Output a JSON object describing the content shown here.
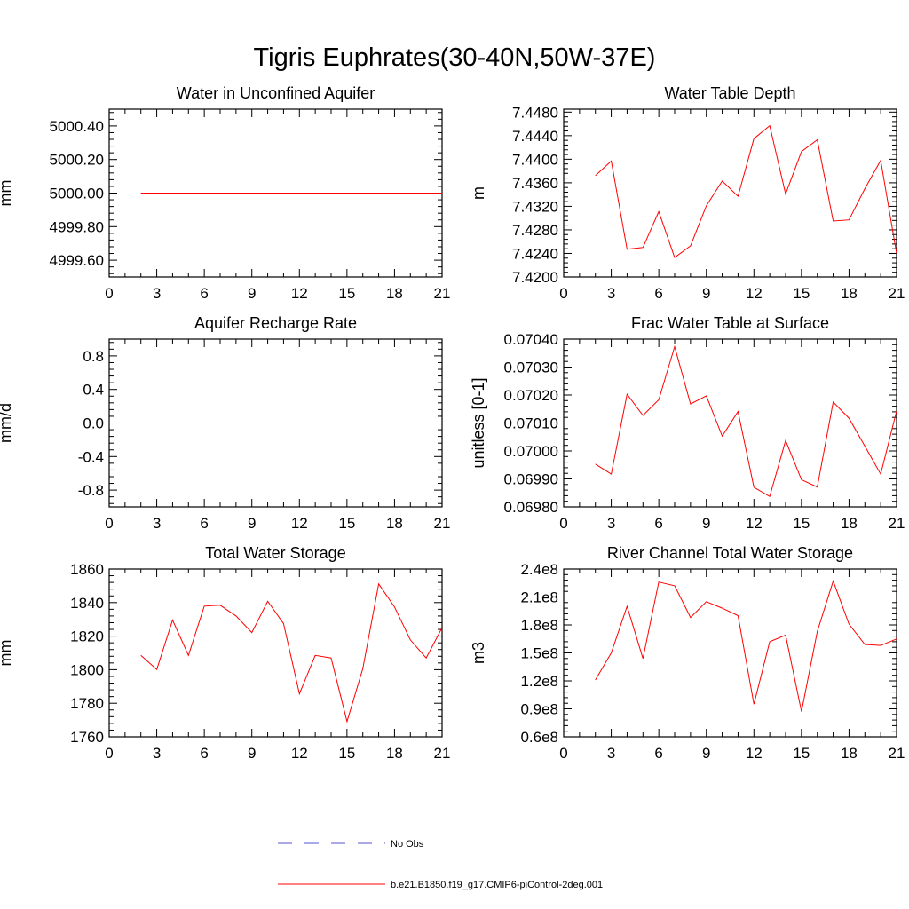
{
  "figure": {
    "title": "Tigris Euphrates(30-40N,50W-37E)"
  },
  "legend": {
    "items": [
      {
        "label": "No Obs",
        "color": "#5555cc",
        "style": "dashed"
      },
      {
        "label": "b.e21.B1850.f19_g17.CMIP6-piControl-2deg.001",
        "color": "#ff0000",
        "style": "solid"
      }
    ]
  },
  "colors": {
    "series": "#ff0000",
    "obs": "#5555cc",
    "axes": "#000000"
  },
  "chart_data": [
    {
      "type": "line",
      "title": "Water in Unconfined Aquifer",
      "ylabel": "mm",
      "xlim": [
        0,
        21
      ],
      "ylim": [
        4999.5,
        5000.5
      ],
      "xticks": [
        0,
        3,
        6,
        9,
        12,
        15,
        18,
        21
      ],
      "yticks": [
        4999.6,
        4999.8,
        5000.0,
        5000.2,
        5000.4
      ],
      "yticklabels": [
        "4999.60",
        "4999.80",
        "5000.00",
        "5000.20",
        "5000.40"
      ],
      "x": [
        2,
        3,
        4,
        5,
        6,
        7,
        8,
        9,
        10,
        11,
        12,
        13,
        14,
        15,
        16,
        17,
        18,
        19,
        20,
        21
      ],
      "series": [
        {
          "values": [
            5000,
            5000,
            5000,
            5000,
            5000,
            5000,
            5000,
            5000,
            5000,
            5000,
            5000,
            5000,
            5000,
            5000,
            5000,
            5000,
            5000,
            5000,
            5000,
            5000
          ]
        }
      ]
    },
    {
      "type": "line",
      "title": "Water Table Depth",
      "ylabel": "m",
      "xlim": [
        0,
        21
      ],
      "ylim": [
        7.42,
        7.4485
      ],
      "xticks": [
        0,
        3,
        6,
        9,
        12,
        15,
        18,
        21
      ],
      "yticks": [
        7.42,
        7.424,
        7.428,
        7.432,
        7.436,
        7.44,
        7.444,
        7.448
      ],
      "yticklabels": [
        "7.4200",
        "7.4240",
        "7.4280",
        "7.4320",
        "7.4360",
        "7.4400",
        "7.4440",
        "7.4480"
      ],
      "x": [
        2,
        3,
        4,
        5,
        6,
        7,
        8,
        9,
        10,
        11,
        12,
        13,
        14,
        15,
        16,
        17,
        18,
        19,
        20,
        21
      ],
      "series": [
        {
          "values": [
            7.4372,
            7.4397,
            7.4247,
            7.425,
            7.4311,
            7.4233,
            7.4253,
            7.4321,
            7.4363,
            7.4337,
            7.4435,
            7.4457,
            7.4341,
            7.4413,
            7.4433,
            7.4295,
            7.4297,
            7.435,
            7.4398,
            7.424
          ]
        }
      ]
    },
    {
      "type": "line",
      "title": "Aquifer Recharge Rate",
      "ylabel": "mm/d",
      "xlim": [
        0,
        21
      ],
      "ylim": [
        -1.0,
        1.0
      ],
      "xticks": [
        0,
        3,
        6,
        9,
        12,
        15,
        18,
        21
      ],
      "yticks": [
        -0.8,
        -0.4,
        0.0,
        0.4,
        0.8
      ],
      "yticklabels": [
        "-0.8",
        "-0.4",
        "0.0",
        "0.4",
        "0.8"
      ],
      "x": [
        2,
        3,
        4,
        5,
        6,
        7,
        8,
        9,
        10,
        11,
        12,
        13,
        14,
        15,
        16,
        17,
        18,
        19,
        20,
        21
      ],
      "series": [
        {
          "values": [
            0,
            0,
            0,
            0,
            0,
            0,
            0,
            0,
            0,
            0,
            0,
            0,
            0,
            0,
            0,
            0,
            0,
            0,
            0,
            0
          ]
        }
      ]
    },
    {
      "type": "line",
      "title": "Frac Water Table at Surface",
      "ylabel": "unitless [0-1]",
      "xlim": [
        0,
        21
      ],
      "ylim": [
        0.0698,
        0.0704
      ],
      "xticks": [
        0,
        3,
        6,
        9,
        12,
        15,
        18,
        21
      ],
      "yticks": [
        0.0698,
        0.0699,
        0.07,
        0.0701,
        0.0702,
        0.0703,
        0.0704
      ],
      "yticklabels": [
        "0.06980",
        "0.06990",
        "0.07000",
        "0.07010",
        "0.07020",
        "0.07030",
        "0.07040"
      ],
      "x": [
        2,
        3,
        4,
        5,
        6,
        7,
        8,
        9,
        10,
        11,
        12,
        13,
        14,
        15,
        16,
        17,
        18,
        19,
        20,
        21
      ],
      "series": [
        {
          "values": [
            0.069953,
            0.069917,
            0.070203,
            0.070127,
            0.070183,
            0.070373,
            0.070168,
            0.070197,
            0.070053,
            0.070141,
            0.06987,
            0.069837,
            0.070037,
            0.069897,
            0.069871,
            0.070175,
            0.070117,
            0.070017,
            0.069917,
            0.070143
          ]
        }
      ]
    },
    {
      "type": "line",
      "title": "Total Water Storage",
      "ylabel": "mm",
      "xlim": [
        0,
        21
      ],
      "ylim": [
        1760,
        1860
      ],
      "xticks": [
        0,
        3,
        6,
        9,
        12,
        15,
        18,
        21
      ],
      "yticks": [
        1760,
        1780,
        1800,
        1820,
        1840,
        1860
      ],
      "yticklabels": [
        "1760",
        "1780",
        "1800",
        "1820",
        "1840",
        "1860"
      ],
      "x": [
        2,
        3,
        4,
        5,
        6,
        7,
        8,
        9,
        10,
        11,
        12,
        13,
        14,
        15,
        16,
        17,
        18,
        19,
        20,
        21
      ],
      "series": [
        {
          "values": [
            1808.5,
            1800.1,
            1829.6,
            1808.5,
            1837.9,
            1838.4,
            1832.0,
            1822.1,
            1840.8,
            1827.5,
            1785.6,
            1808.5,
            1807.0,
            1769.1,
            1800.6,
            1851.1,
            1837.4,
            1817.7,
            1807.0,
            1825.0
          ]
        }
      ]
    },
    {
      "type": "line",
      "title": "River Channel Total Water Storage",
      "ylabel": "m3",
      "xlim": [
        0,
        21
      ],
      "ylim": [
        60000000,
        240000000
      ],
      "xticks": [
        0,
        3,
        6,
        9,
        12,
        15,
        18,
        21
      ],
      "yticks": [
        60000000,
        90000000,
        120000000,
        150000000,
        180000000,
        210000000,
        240000000
      ],
      "yticklabels": [
        "0.6e8",
        "0.9e8",
        "1.2e8",
        "1.5e8",
        "1.8e8",
        "2.1e8",
        "2.4e8"
      ],
      "x": [
        2,
        3,
        4,
        5,
        6,
        7,
        8,
        9,
        10,
        11,
        12,
        13,
        14,
        15,
        16,
        17,
        18,
        19,
        20,
        21
      ],
      "series": [
        {
          "values": [
            121000000,
            150000000,
            200000000,
            144000000,
            226000000,
            222000000,
            188000000,
            205000000,
            198000000,
            190000000,
            95000000,
            162000000,
            169000000,
            87000000,
            173000000,
            227000000,
            181000000,
            159000000,
            158000000,
            165000000
          ]
        }
      ]
    }
  ]
}
